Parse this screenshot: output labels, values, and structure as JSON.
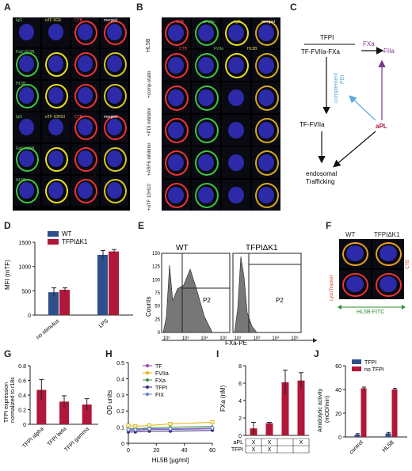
{
  "panels": {
    "A": "A",
    "B": "B",
    "C": "C",
    "D": "D",
    "E": "E",
    "F": "F",
    "G": "G",
    "H": "H",
    "I": "I",
    "J": "J"
  },
  "panelA": {
    "labels": [
      "IgG",
      "αTF 5G9",
      "CTB",
      "merged",
      "Fab' HL5B",
      "HL5B",
      "IgG",
      "αTF 10H10",
      "CTB",
      "merged",
      "Fab' HL5B",
      "HL5B"
    ]
  },
  "panelB": {
    "cols": [
      "CTB",
      "αFVIIa",
      "IgG",
      "merged"
    ],
    "row_labels": [
      "HL5B",
      "+comp-statin",
      "+PDI inhibitor",
      "+ARF6 inhibitor",
      "+αTF 10H10"
    ],
    "tile_labels": [
      "CTB",
      "FVIIa",
      "HL5B"
    ]
  },
  "panelC": {
    "tfpi": "TFPI",
    "complex": "TF-FVIIa-FXa",
    "fxa": "FXa",
    "fiia": "FIIa",
    "pdi": "PDI",
    "complement": "complement",
    "tf_fviia": "TF-FVIIa",
    "apl": "aPL",
    "endosomal": "endosomal",
    "trafficking": "Trafficking"
  },
  "panelD": {
    "ylabel": "MFI (mTF)",
    "legend": [
      "WT",
      "TFPIΔK1"
    ],
    "colors": [
      "#2e4f8c",
      "#b0173a"
    ]
  },
  "panelE": {
    "titles": [
      "WT",
      "TFPIΔK1"
    ],
    "ylabel": "Counts",
    "xlabel": "FXa-PE",
    "gate": "P2"
  },
  "panelF": {
    "titles": [
      "WT",
      "TFPIΔK1"
    ],
    "left_label": "LysoTracker",
    "right_label": "CTB",
    "bottom_label": "HL5B-FITC"
  },
  "chart_data": [
    {
      "type": "bar",
      "panel": "D",
      "categories": [
        "no stimulus",
        "LPS"
      ],
      "series": [
        {
          "name": "WT",
          "values": [
            470,
            1240
          ],
          "errors": [
            90,
            90
          ]
        },
        {
          "name": "TFPIΔK1",
          "values": [
            520,
            1310
          ],
          "errors": [
            40,
            40
          ]
        }
      ],
      "ylabel": "MFI (mTF)",
      "ylim": [
        0,
        1500
      ],
      "yticks": [
        0,
        500,
        1000,
        1500
      ]
    },
    {
      "type": "bar",
      "panel": "G",
      "categories": [
        "TFPI alpha",
        "TFPI beta",
        "TFPI gamma"
      ],
      "values": [
        0.47,
        0.31,
        0.27
      ],
      "errors": [
        0.14,
        0.08,
        0.08
      ],
      "ylabel": "TFPI expression normalized to r18s",
      "ylim": [
        0,
        0.8
      ],
      "yticks": [
        0,
        0.2,
        0.4,
        0.6,
        0.8
      ]
    },
    {
      "type": "line",
      "panel": "H",
      "x": [
        0,
        5,
        15,
        30,
        60
      ],
      "series": [
        {
          "name": "TF",
          "values": [
            0.08,
            0.08,
            0.085,
            0.085,
            0.09
          ],
          "color": "#9b3fb0",
          "marker": "circle"
        },
        {
          "name": "FVIIa",
          "values": [
            0.11,
            0.105,
            0.11,
            0.12,
            0.13
          ],
          "color": "#e0b400",
          "marker": "square"
        },
        {
          "name": "FXa",
          "values": [
            0.09,
            0.09,
            0.095,
            0.1,
            0.105
          ],
          "color": "#3a8f3a",
          "marker": "triangle"
        },
        {
          "name": "TFPI",
          "values": [
            0.07,
            0.07,
            0.075,
            0.075,
            0.08
          ],
          "color": "#2c2c7a",
          "marker": "circle"
        },
        {
          "name": "FIX",
          "values": [
            0.085,
            0.085,
            0.09,
            0.09,
            0.095
          ],
          "color": "#5d7fd0",
          "marker": "diamond"
        }
      ],
      "ylabel": "OD units",
      "xlabel": "HL5B [µg/ml]",
      "xlim": [
        0,
        60
      ],
      "ylim": [
        0,
        0.5
      ],
      "xticks": [
        0,
        20,
        40,
        60
      ],
      "yticks": [
        0,
        0.1,
        0.2,
        0.3,
        0.4,
        0.5
      ]
    },
    {
      "type": "bar",
      "panel": "I",
      "categories": [
        "1",
        "2",
        "3",
        "4"
      ],
      "values": [
        0.8,
        1.4,
        6.1,
        6.3
      ],
      "errors": [
        0.7,
        0.1,
        1.4,
        0.9
      ],
      "ylabel": "FXa (nM)",
      "ylim": [
        0,
        8
      ],
      "yticks": [
        0,
        2,
        4,
        6,
        8
      ],
      "table_rows": [
        "aPL",
        "TFPI"
      ],
      "table": [
        [
          "X",
          "X",
          "",
          "X"
        ],
        [
          "X",
          "X",
          "",
          ""
        ]
      ]
    },
    {
      "type": "bar",
      "panel": "J",
      "categories": [
        "control",
        "HL5B"
      ],
      "series": [
        {
          "name": "TFPI",
          "values": [
            2,
            3
          ],
          "errors": [
            0.8,
            0.8
          ]
        },
        {
          "name": "no TFPI",
          "values": [
            41,
            40
          ],
          "errors": [
            1,
            1
          ]
        }
      ],
      "ylabel": "Amidolytic activity (mOD/min)",
      "ylim": [
        0,
        60
      ],
      "yticks": [
        0,
        20,
        40,
        60
      ]
    }
  ]
}
